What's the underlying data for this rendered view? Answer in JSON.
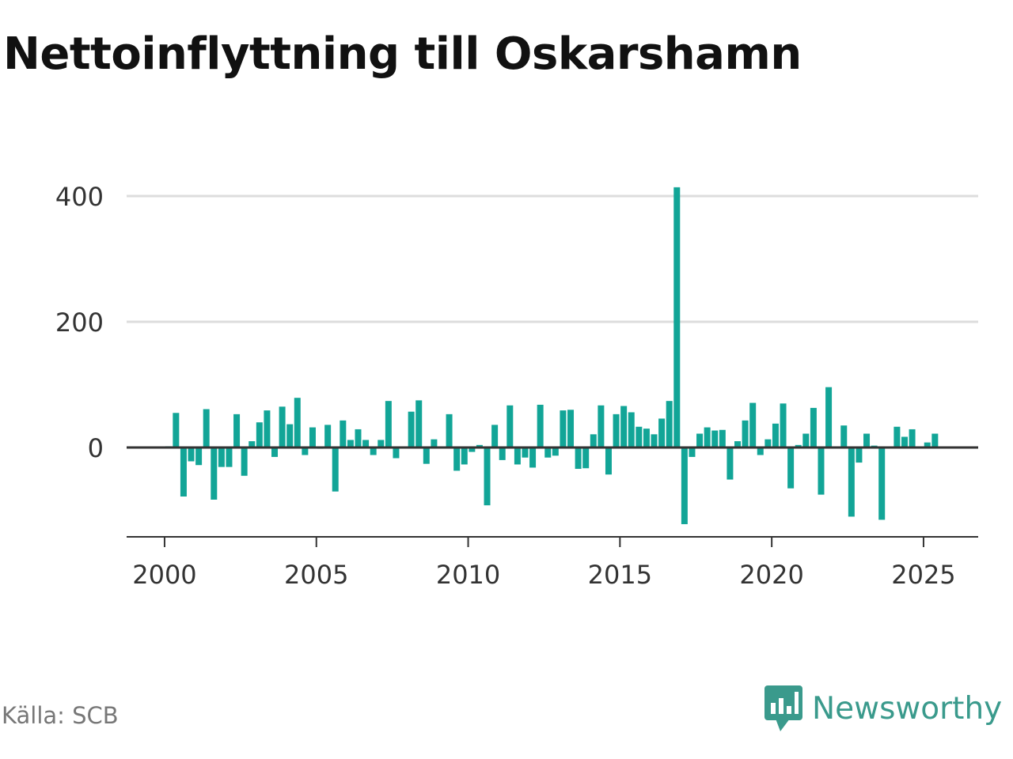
{
  "chart_data": {
    "type": "bar",
    "title": "Nettoinflyttning till Oskarshamn",
    "xlabel": "",
    "ylabel": "",
    "x_tick_labels": [
      "2000",
      "2005",
      "2010",
      "2015",
      "2020",
      "2025"
    ],
    "x_ticks": [
      2000,
      2005,
      2010,
      2015,
      2020,
      2025
    ],
    "y_tick_labels": [
      "0",
      "200",
      "400"
    ],
    "y_ticks": [
      0,
      200,
      400
    ],
    "xlim": [
      1998.75,
      2026.8
    ],
    "ylim": [
      -145,
      400
    ],
    "grid": true,
    "bar_color": "#12a597",
    "zero_line_color": "#333333",
    "grid_color": "#dddddd",
    "series": [
      {
        "values": [
          {
            "x": 2000.125,
            "y": 2
          },
          {
            "x": 2000.375,
            "y": 55
          },
          {
            "x": 2000.625,
            "y": -78
          },
          {
            "x": 2000.875,
            "y": -22
          },
          {
            "x": 2001.125,
            "y": -28
          },
          {
            "x": 2001.375,
            "y": 61
          },
          {
            "x": 2001.625,
            "y": -83
          },
          {
            "x": 2001.875,
            "y": -31
          },
          {
            "x": 2002.125,
            "y": -31
          },
          {
            "x": 2002.375,
            "y": 53
          },
          {
            "x": 2002.625,
            "y": -45
          },
          {
            "x": 2002.875,
            "y": 10
          },
          {
            "x": 2003.125,
            "y": 40
          },
          {
            "x": 2003.375,
            "y": 59
          },
          {
            "x": 2003.625,
            "y": -15
          },
          {
            "x": 2003.875,
            "y": 65
          },
          {
            "x": 2004.125,
            "y": 37
          },
          {
            "x": 2004.375,
            "y": 79
          },
          {
            "x": 2004.625,
            "y": -12
          },
          {
            "x": 2004.875,
            "y": 32
          },
          {
            "x": 2005.125,
            "y": -2
          },
          {
            "x": 2005.375,
            "y": 36
          },
          {
            "x": 2005.625,
            "y": -70
          },
          {
            "x": 2005.875,
            "y": 43
          },
          {
            "x": 2006.125,
            "y": 12
          },
          {
            "x": 2006.375,
            "y": 29
          },
          {
            "x": 2006.625,
            "y": 12
          },
          {
            "x": 2006.875,
            "y": -12
          },
          {
            "x": 2007.125,
            "y": 12
          },
          {
            "x": 2007.375,
            "y": 74
          },
          {
            "x": 2007.625,
            "y": -17
          },
          {
            "x": 2008.125,
            "y": 57
          },
          {
            "x": 2008.375,
            "y": 75
          },
          {
            "x": 2008.625,
            "y": -26
          },
          {
            "x": 2008.875,
            "y": 13
          },
          {
            "x": 2009.375,
            "y": 53
          },
          {
            "x": 2009.625,
            "y": -37
          },
          {
            "x": 2009.875,
            "y": -27
          },
          {
            "x": 2010.125,
            "y": -7
          },
          {
            "x": 2010.375,
            "y": 4
          },
          {
            "x": 2010.625,
            "y": -92
          },
          {
            "x": 2010.875,
            "y": 36
          },
          {
            "x": 2011.125,
            "y": -20
          },
          {
            "x": 2011.375,
            "y": 67
          },
          {
            "x": 2011.625,
            "y": -27
          },
          {
            "x": 2011.875,
            "y": -16
          },
          {
            "x": 2012.125,
            "y": -32
          },
          {
            "x": 2012.375,
            "y": 68
          },
          {
            "x": 2012.625,
            "y": -16
          },
          {
            "x": 2012.875,
            "y": -13
          },
          {
            "x": 2013.125,
            "y": 59
          },
          {
            "x": 2013.375,
            "y": 60
          },
          {
            "x": 2013.625,
            "y": -34
          },
          {
            "x": 2013.875,
            "y": -33
          },
          {
            "x": 2014.125,
            "y": 21
          },
          {
            "x": 2014.375,
            "y": 67
          },
          {
            "x": 2014.625,
            "y": -43
          },
          {
            "x": 2014.875,
            "y": 53
          },
          {
            "x": 2015.125,
            "y": 66
          },
          {
            "x": 2015.375,
            "y": 56
          },
          {
            "x": 2015.625,
            "y": 33
          },
          {
            "x": 2015.875,
            "y": 30
          },
          {
            "x": 2016.125,
            "y": 21
          },
          {
            "x": 2016.375,
            "y": 46
          },
          {
            "x": 2016.625,
            "y": 74
          },
          {
            "x": 2016.875,
            "y": 414
          },
          {
            "x": 2017.125,
            "y": -122
          },
          {
            "x": 2017.375,
            "y": -15
          },
          {
            "x": 2017.625,
            "y": 22
          },
          {
            "x": 2017.875,
            "y": 32
          },
          {
            "x": 2018.125,
            "y": 27
          },
          {
            "x": 2018.375,
            "y": 28
          },
          {
            "x": 2018.625,
            "y": -51
          },
          {
            "x": 2018.875,
            "y": 10
          },
          {
            "x": 2019.125,
            "y": 43
          },
          {
            "x": 2019.375,
            "y": 71
          },
          {
            "x": 2019.625,
            "y": -12
          },
          {
            "x": 2019.875,
            "y": 13
          },
          {
            "x": 2020.125,
            "y": 38
          },
          {
            "x": 2020.375,
            "y": 70
          },
          {
            "x": 2020.625,
            "y": -65
          },
          {
            "x": 2020.875,
            "y": 4
          },
          {
            "x": 2021.125,
            "y": 22
          },
          {
            "x": 2021.375,
            "y": 63
          },
          {
            "x": 2021.625,
            "y": -75
          },
          {
            "x": 2021.875,
            "y": 96
          },
          {
            "x": 2022.375,
            "y": 35
          },
          {
            "x": 2022.625,
            "y": -110
          },
          {
            "x": 2022.875,
            "y": -24
          },
          {
            "x": 2023.125,
            "y": 22
          },
          {
            "x": 2023.375,
            "y": 3
          },
          {
            "x": 2023.625,
            "y": -115
          },
          {
            "x": 2024.125,
            "y": 33
          },
          {
            "x": 2024.375,
            "y": 17
          },
          {
            "x": 2024.625,
            "y": 29
          },
          {
            "x": 2025.125,
            "y": 8
          },
          {
            "x": 2025.375,
            "y": 22
          }
        ]
      }
    ]
  },
  "footer": {
    "source": "Källa: SCB",
    "brand": "Newsworthy"
  },
  "brand_icon": "newsworthy-logo-icon"
}
